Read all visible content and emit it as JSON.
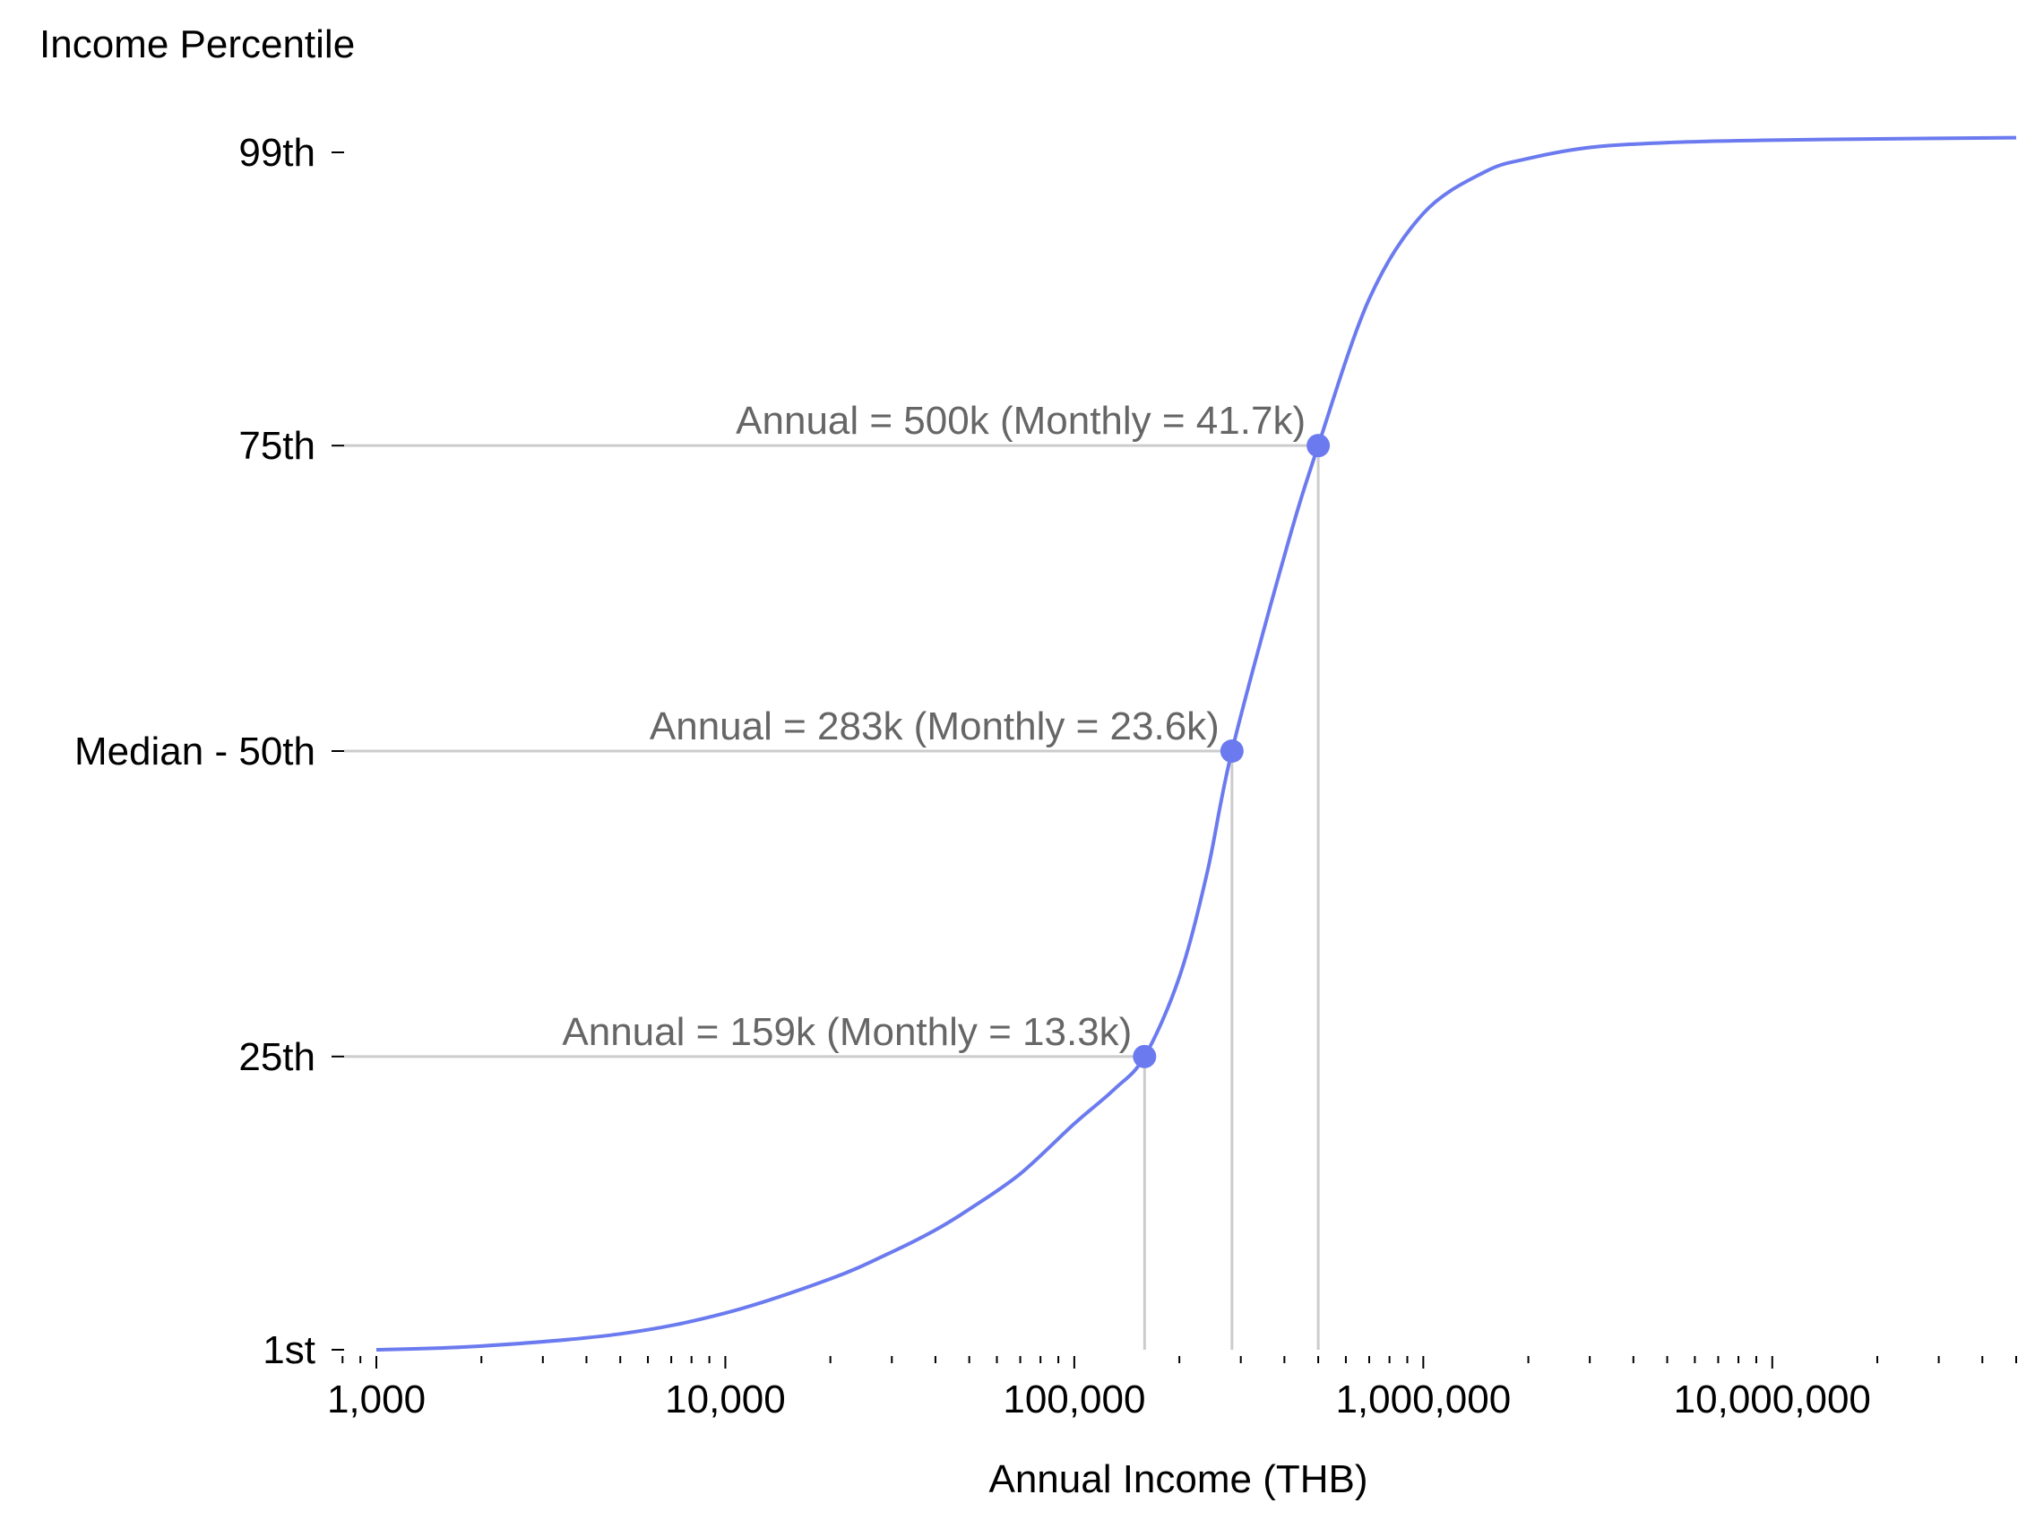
{
  "chart_data": {
    "type": "line",
    "title": "",
    "ylabel": "Income Percentile",
    "xlabel": "Annual Income (THB)",
    "xscale": "log",
    "xlim": [
      1000,
      50000000
    ],
    "ylim": [
      1,
      99
    ],
    "grid": false,
    "legend": "none",
    "colors": {
      "line": "#6b7bef",
      "guide": "#cccccc",
      "annotation_text": "#666666"
    },
    "x_ticks": [
      {
        "value": 1000,
        "label": "1,000"
      },
      {
        "value": 10000,
        "label": "10,000"
      },
      {
        "value": 100000,
        "label": "100,000"
      },
      {
        "value": 1000000,
        "label": "1,000,000"
      },
      {
        "value": 10000000,
        "label": "10,000,000"
      }
    ],
    "y_ticks": [
      {
        "value": 1,
        "label": "1st"
      },
      {
        "value": 25,
        "label": "25th"
      },
      {
        "value": 50,
        "label": "Median - 50th"
      },
      {
        "value": 75,
        "label": "75th"
      },
      {
        "value": 99,
        "label": "99th"
      }
    ],
    "series": [
      {
        "x": [
          1000,
          2000,
          5000,
          10000,
          20000,
          30000,
          40000,
          50000,
          70000,
          100000,
          130000,
          159000,
          200000,
          240000,
          283000,
          400000,
          500000,
          700000,
          1000000,
          1500000,
          2000000,
          3000000,
          5000000,
          10000000,
          20000000,
          50000000
        ],
        "y": [
          1,
          1.3,
          2.3,
          4,
          6.8,
          9,
          10.8,
          12.5,
          15.4,
          19.5,
          22.3,
          25,
          31.5,
          40,
          50,
          66,
          75,
          87,
          94,
          97.4,
          98.5,
          99.4,
          99.8,
          100,
          100.1,
          100.2
        ]
      }
    ],
    "points": [
      {
        "x": 159000,
        "y": 25,
        "label": "Annual = 159k (Monthly = 13.3k)"
      },
      {
        "x": 283000,
        "y": 50,
        "label": "Annual = 283k (Monthly = 23.6k)"
      },
      {
        "x": 500000,
        "y": 75,
        "label": "Annual = 500k (Monthly = 41.7k)"
      }
    ]
  }
}
